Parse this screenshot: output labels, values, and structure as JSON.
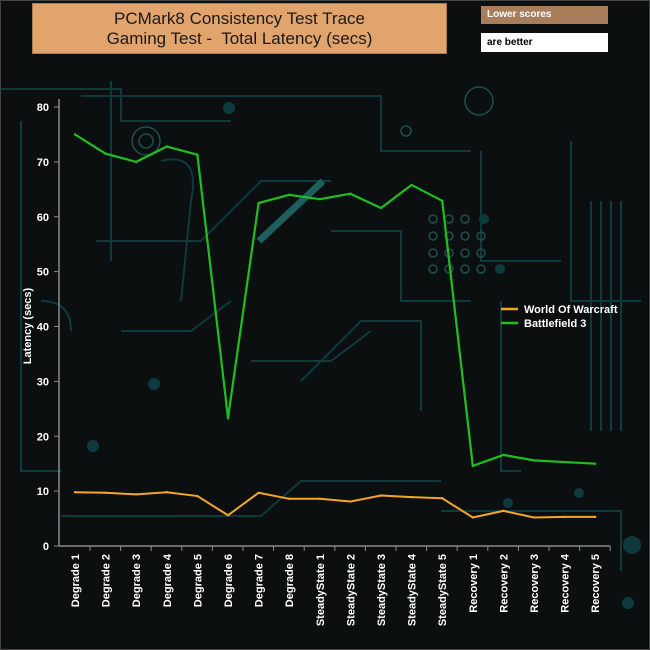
{
  "title": {
    "line1": "PCMark8 Consistency Test Trace",
    "line2": "Gaming Test -  Total Latency (secs)"
  },
  "note": {
    "line1": "Lower scores",
    "line2": "are better"
  },
  "colors": {
    "background": "#0b0f10",
    "circuit": "#0f3a3d",
    "title_box": "#e0a46c",
    "note_box": "#a87e5a",
    "wow": "#f5a623",
    "bf3": "#1fbf1f"
  },
  "chart_data": {
    "type": "line",
    "title": "PCMark8 Consistency Test Trace Gaming Test - Total Latency (secs)",
    "xlabel": "",
    "ylabel": "Latency (secs)",
    "ylim": [
      0,
      80
    ],
    "yticks": [
      0,
      10,
      20,
      30,
      40,
      50,
      60,
      70,
      80
    ],
    "grid": false,
    "legend_position": "right",
    "categories": [
      "Degrade 1",
      "Degrade 2",
      "Degrade 3",
      "Degrade 4",
      "Degrade 5",
      "Degrade 6",
      "Degrade 7",
      "Degrade 8",
      "SteadyState 1",
      "SteadyState 2",
      "SteadyState 3",
      "SteadyState 4",
      "SteadyState 5",
      "Recovery 1",
      "Recovery 2",
      "Recovery 3",
      "Recovery 4",
      "Recovery 5"
    ],
    "series": [
      {
        "name": "World Of Warcraft",
        "values": [
          9.8,
          9.7,
          9.4,
          9.8,
          9.1,
          5.6,
          9.7,
          8.6,
          8.6,
          8.1,
          9.2,
          8.9,
          8.7,
          5.2,
          6.4,
          5.2,
          5.3,
          5.3
        ]
      },
      {
        "name": "Battlefield 3",
        "values": [
          75.0,
          71.5,
          70.0,
          72.8,
          71.3,
          23.3,
          62.5,
          64.0,
          63.2,
          64.2,
          61.6,
          65.8,
          62.9,
          14.6,
          16.6,
          15.6,
          15.3,
          15.0
        ]
      }
    ]
  }
}
